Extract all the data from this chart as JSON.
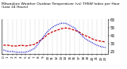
{
  "title": "Milwaukee Weather Outdoor Temperature (vs) THSW Index per Hour (Last 24 Hours)",
  "background_color": "#ffffff",
  "grid_color": "#aaaaaa",
  "hours": [
    0,
    1,
    2,
    3,
    4,
    5,
    6,
    7,
    8,
    9,
    10,
    11,
    12,
    13,
    14,
    15,
    16,
    17,
    18,
    19,
    20,
    21,
    22,
    23
  ],
  "temp_values": [
    33,
    33,
    32,
    32,
    33,
    32,
    33,
    34,
    38,
    42,
    47,
    50,
    52,
    54,
    55,
    54,
    52,
    50,
    46,
    44,
    41,
    39,
    38,
    37
  ],
  "thsw_values": [
    27,
    25,
    25,
    24,
    24,
    24,
    26,
    29,
    36,
    44,
    51,
    56,
    59,
    61,
    61,
    58,
    55,
    49,
    43,
    39,
    36,
    33,
    31,
    30
  ],
  "temp_color": "#cc0000",
  "thsw_color": "#0000cc",
  "ylim": [
    22,
    66
  ],
  "yticks": [
    25,
    35,
    45,
    55,
    65
  ],
  "ytick_labels": [
    "25",
    "35",
    "45",
    "55",
    "65"
  ],
  "ylabel_fontsize": 3.5,
  "xlabel_fontsize": 3.0,
  "title_fontsize": 3.2,
  "line_width": 0.9,
  "x_tick_labels": [
    "0",
    "1",
    "2",
    "3",
    "4",
    "5",
    "6",
    "7",
    "8",
    "9",
    "10",
    "11",
    "12",
    "13",
    "14",
    "15",
    "16",
    "17",
    "18",
    "19",
    "20",
    "21",
    "22",
    "23"
  ]
}
